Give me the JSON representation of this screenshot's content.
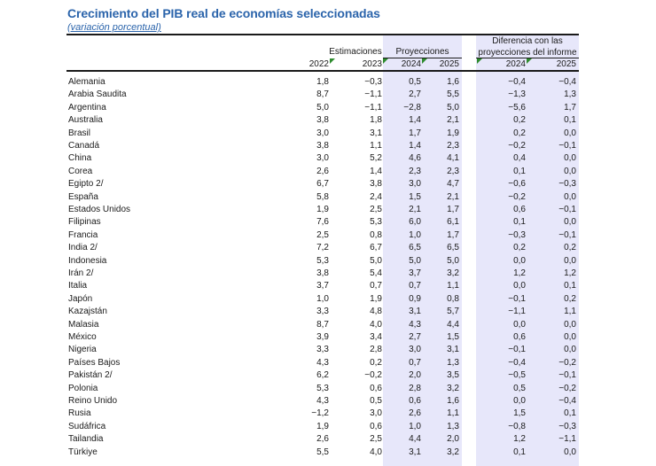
{
  "title": "Crecimiento del PIB real de economías seleccionadas",
  "subtitle": "(variación porcentual)",
  "header": {
    "group_estimaciones": "Estimaciones",
    "group_proyecciones": "Proyecciones",
    "group_diferencia_line1": "Diferencia con las",
    "group_diferencia_line2": "proyecciones del informe",
    "columns": [
      "2022",
      "2023",
      "2024",
      "2025",
      "2024",
      "2025"
    ]
  },
  "colors": {
    "title": "#2b64ab",
    "shading": "#e7e7fa",
    "marker": "#2e8b2e"
  },
  "rows": [
    {
      "country": "Alemania",
      "v": [
        "1,8",
        "−0,3",
        "0,5",
        "1,6",
        "−0,4",
        "−0,4"
      ]
    },
    {
      "country": "Arabia Saudita",
      "v": [
        "8,7",
        "−1,1",
        "2,7",
        "5,5",
        "−1,3",
        "1,3"
      ]
    },
    {
      "country": "Argentina",
      "v": [
        "5,0",
        "−1,1",
        "−2,8",
        "5,0",
        "−5,6",
        "1,7"
      ]
    },
    {
      "country": "Australia",
      "v": [
        "3,8",
        "1,8",
        "1,4",
        "2,1",
        "0,2",
        "0,1"
      ]
    },
    {
      "country": "Brasil",
      "v": [
        "3,0",
        "3,1",
        "1,7",
        "1,9",
        "0,2",
        "0,0"
      ]
    },
    {
      "country": "Canadá",
      "v": [
        "3,8",
        "1,1",
        "1,4",
        "2,3",
        "−0,2",
        "−0,1"
      ]
    },
    {
      "country": "China",
      "v": [
        "3,0",
        "5,2",
        "4,6",
        "4,1",
        "0,4",
        "0,0"
      ]
    },
    {
      "country": "Corea",
      "v": [
        "2,6",
        "1,4",
        "2,3",
        "2,3",
        "0,1",
        "0,0"
      ]
    },
    {
      "country": "Egipto 2/",
      "v": [
        "6,7",
        "3,8",
        "3,0",
        "4,7",
        "−0,6",
        "−0,3"
      ]
    },
    {
      "country": "España",
      "v": [
        "5,8",
        "2,4",
        "1,5",
        "2,1",
        "−0,2",
        "0,0"
      ]
    },
    {
      "country": "Estados Unidos",
      "v": [
        "1,9",
        "2,5",
        "2,1",
        "1,7",
        "0,6",
        "−0,1"
      ]
    },
    {
      "country": "Filipinas",
      "v": [
        "7,6",
        "5,3",
        "6,0",
        "6,1",
        "0,1",
        "0,0"
      ]
    },
    {
      "country": "Francia",
      "v": [
        "2,5",
        "0,8",
        "1,0",
        "1,7",
        "−0,3",
        "−0,1"
      ]
    },
    {
      "country": "India 2/",
      "v": [
        "7,2",
        "6,7",
        "6,5",
        "6,5",
        "0,2",
        "0,2"
      ]
    },
    {
      "country": "Indonesia",
      "v": [
        "5,3",
        "5,0",
        "5,0",
        "5,0",
        "0,0",
        "0,0"
      ]
    },
    {
      "country": "Irán 2/",
      "v": [
        "3,8",
        "5,4",
        "3,7",
        "3,2",
        "1,2",
        "1,2"
      ]
    },
    {
      "country": "Italia",
      "v": [
        "3,7",
        "0,7",
        "0,7",
        "1,1",
        "0,0",
        "0,1"
      ]
    },
    {
      "country": "Japón",
      "v": [
        "1,0",
        "1,9",
        "0,9",
        "0,8",
        "−0,1",
        "0,2"
      ]
    },
    {
      "country": "Kazajstán",
      "v": [
        "3,3",
        "4,8",
        "3,1",
        "5,7",
        "−1,1",
        "1,1"
      ]
    },
    {
      "country": "Malasia",
      "v": [
        "8,7",
        "4,0",
        "4,3",
        "4,4",
        "0,0",
        "0,0"
      ]
    },
    {
      "country": "México",
      "v": [
        "3,9",
        "3,4",
        "2,7",
        "1,5",
        "0,6",
        "0,0"
      ]
    },
    {
      "country": "Nigeria",
      "v": [
        "3,3",
        "2,8",
        "3,0",
        "3,1",
        "−0,1",
        "0,0"
      ]
    },
    {
      "country": "Países Bajos",
      "v": [
        "4,3",
        "0,2",
        "0,7",
        "1,3",
        "−0,4",
        "−0,2"
      ]
    },
    {
      "country": "Pakistán 2/",
      "v": [
        "6,2",
        "−0,2",
        "2,0",
        "3,5",
        "−0,5",
        "−0,1"
      ]
    },
    {
      "country": "Polonia",
      "v": [
        "5,3",
        "0,6",
        "2,8",
        "3,2",
        "0,5",
        "−0,2"
      ]
    },
    {
      "country": "Reino Unido",
      "v": [
        "4,3",
        "0,5",
        "0,6",
        "1,6",
        "0,0",
        "−0,4"
      ]
    },
    {
      "country": "Rusia",
      "v": [
        "−1,2",
        "3,0",
        "2,6",
        "1,1",
        "1,5",
        "0,1"
      ]
    },
    {
      "country": "Sudáfrica",
      "v": [
        "1,9",
        "0,6",
        "1,0",
        "1,3",
        "−0,8",
        "−0,3"
      ]
    },
    {
      "country": "Tailandia",
      "v": [
        "2,6",
        "2,5",
        "4,4",
        "2,0",
        "1,2",
        "−1,1"
      ]
    },
    {
      "country": "Türkiye",
      "v": [
        "5,5",
        "4,0",
        "3,1",
        "3,2",
        "0,1",
        "0,0"
      ]
    }
  ]
}
